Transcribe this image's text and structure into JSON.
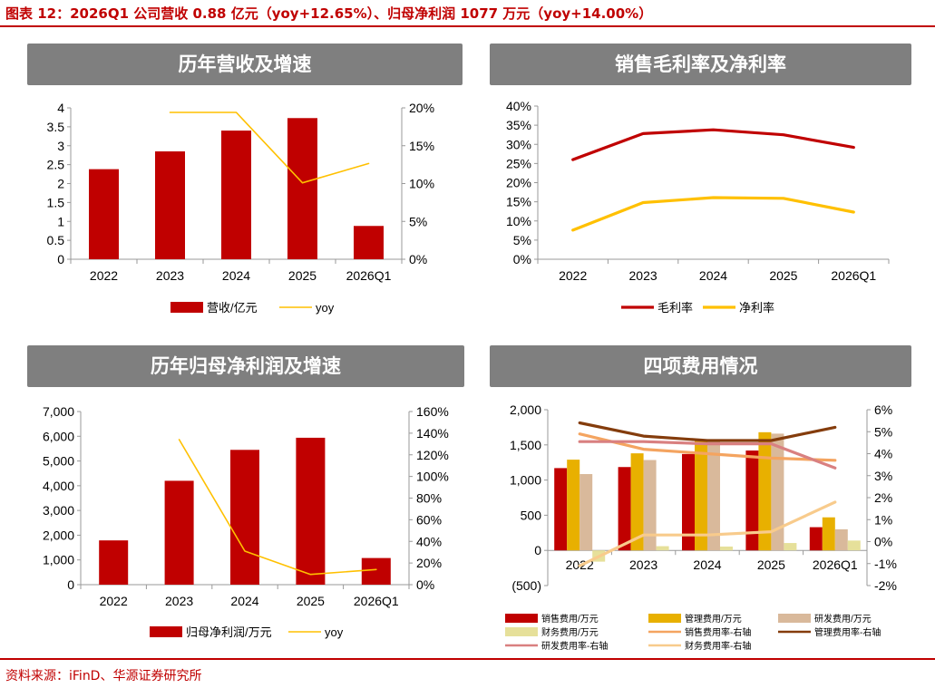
{
  "header": {
    "title": "图表 12：2026Q1 公司营收 0.88 亿元（yoy+12.65%）、归母净利润 1077 万元（yoy+14.00%）"
  },
  "footer": {
    "source": "资料来源：iFinD、华源证券研究所"
  },
  "chart_data": [
    {
      "type": "bar",
      "title": "历年营收及增速",
      "categories": [
        "2022",
        "2023",
        "2024",
        "2025",
        "2026Q1"
      ],
      "y_ticks": [
        "0",
        "0.5",
        "1",
        "1.5",
        "2",
        "2.5",
        "3",
        "3.5",
        "4"
      ],
      "y2_ticks": [
        "0%",
        "5%",
        "10%",
        "15%",
        "20%"
      ],
      "ylim": [
        0,
        4
      ],
      "y2lim": [
        0,
        20
      ],
      "series": [
        {
          "name": "营收/亿元",
          "kind": "bar",
          "axis": "left",
          "color": "#c00000",
          "values": [
            2.38,
            2.85,
            3.4,
            3.73,
            0.88
          ]
        },
        {
          "name": "yoy",
          "kind": "line",
          "axis": "right",
          "color": "#ffc000",
          "values": [
            null,
            19.4,
            19.4,
            10.1,
            12.65
          ]
        }
      ],
      "legend": "bottom"
    },
    {
      "type": "line",
      "title": "销售毛利率及净利率",
      "categories": [
        "2022",
        "2023",
        "2024",
        "2025",
        "2026Q1"
      ],
      "y_ticks": [
        "0%",
        "5%",
        "10%",
        "15%",
        "20%",
        "25%",
        "30%",
        "35%",
        "40%"
      ],
      "ylim": [
        0,
        40
      ],
      "series": [
        {
          "name": "毛利率",
          "kind": "line",
          "axis": "left",
          "color": "#c00000",
          "values": [
            26,
            32.8,
            33.8,
            32.5,
            29.2
          ]
        },
        {
          "name": "净利率",
          "kind": "line",
          "axis": "left",
          "color": "#ffc000",
          "values": [
            7.6,
            14.8,
            16.1,
            15.9,
            12.3
          ]
        }
      ],
      "legend": "bottom"
    },
    {
      "type": "bar",
      "title": "历年归母净利润及增速",
      "categories": [
        "2022",
        "2023",
        "2024",
        "2025",
        "2026Q1"
      ],
      "y_ticks": [
        "0",
        "1,000",
        "2,000",
        "3,000",
        "4,000",
        "5,000",
        "6,000",
        "7,000"
      ],
      "y2_ticks": [
        "0%",
        "20%",
        "40%",
        "60%",
        "80%",
        "100%",
        "120%",
        "140%",
        "160%"
      ],
      "ylim": [
        0,
        7000
      ],
      "y2lim": [
        0,
        160
      ],
      "series": [
        {
          "name": "归母净利润/万元",
          "kind": "bar",
          "axis": "left",
          "color": "#c00000",
          "values": [
            1790,
            4200,
            5450,
            5940,
            1077
          ]
        },
        {
          "name": "yoy",
          "kind": "line",
          "axis": "right",
          "color": "#ffc000",
          "values": [
            null,
            134,
            31,
            9.5,
            14
          ]
        }
      ],
      "legend": "bottom"
    },
    {
      "type": "bar",
      "title": "四项费用情况",
      "categories": [
        "2022",
        "2023",
        "2024",
        "2025",
        "2026Q1"
      ],
      "y_ticks": [
        "(500)",
        "0",
        "500",
        "1,000",
        "1,500",
        "2,000"
      ],
      "y2_ticks": [
        "-2%",
        "-1%",
        "0%",
        "1%",
        "2%",
        "3%",
        "4%",
        "5%",
        "6%"
      ],
      "ylim": [
        -500,
        2000
      ],
      "y2lim": [
        -2,
        6
      ],
      "series": [
        {
          "name": "销售费用/万元",
          "kind": "bar",
          "axis": "left",
          "color": "#c00000",
          "values": [
            1170,
            1185,
            1370,
            1420,
            330
          ]
        },
        {
          "name": "管理费用/万元",
          "kind": "bar",
          "axis": "left",
          "color": "#e8b000",
          "values": [
            1290,
            1380,
            1560,
            1680,
            470
          ]
        },
        {
          "name": "研发费用/万元",
          "kind": "bar",
          "axis": "left",
          "color": "#d9b99b",
          "values": [
            1085,
            1285,
            1550,
            1660,
            300
          ]
        },
        {
          "name": "财务费用/万元",
          "kind": "bar",
          "axis": "left",
          "color": "#e6e09a",
          "values": [
            -160,
            60,
            55,
            105,
            140
          ]
        },
        {
          "name": "销售费用率-右轴",
          "kind": "line",
          "axis": "right",
          "color": "#f4a460",
          "values": [
            4.9,
            4.2,
            4.0,
            3.8,
            3.7
          ]
        },
        {
          "name": "管理费用率-右轴",
          "kind": "line",
          "axis": "right",
          "color": "#843c0c",
          "values": [
            5.4,
            4.8,
            4.6,
            4.6,
            5.2
          ]
        },
        {
          "name": "研发费用率-右轴",
          "kind": "line",
          "axis": "right",
          "color": "#d98080",
          "values": [
            4.55,
            4.55,
            4.45,
            4.45,
            3.35
          ]
        },
        {
          "name": "财务费用率-右轴",
          "kind": "line",
          "axis": "right",
          "color": "#f8cb8c",
          "values": [
            -1.1,
            0.3,
            0.3,
            0.45,
            1.8
          ]
        }
      ],
      "legend": "bottom"
    }
  ]
}
